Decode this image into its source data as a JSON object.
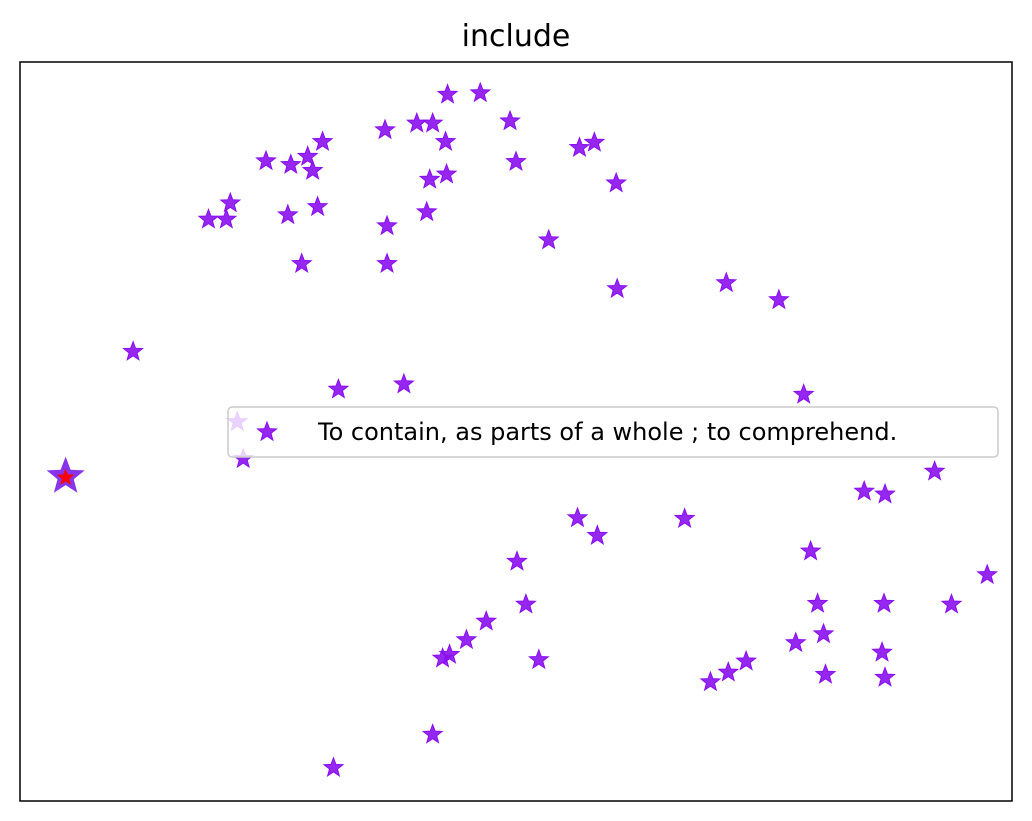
{
  "chart_data": {
    "type": "scatter",
    "title": "include",
    "xlabel": "",
    "ylabel": "",
    "ticks": "hidden",
    "grid": false,
    "legend_placement": "center-right",
    "colors": {
      "points": "#8a10f0",
      "highlight_fill": "#ff0000",
      "highlight_edge": "#7a1ee8"
    },
    "xlim": [
      0,
      100
    ],
    "ylim": [
      0,
      100
    ],
    "series": [
      {
        "name": "To contain, as parts of a whole ; to comprehend.",
        "marker": "star",
        "x": [
          43.1,
          46.4,
          40.0,
          41.6,
          49.4,
          42.9,
          36.8,
          30.5,
          29.0,
          27.3,
          29.5,
          24.8,
          57.9,
          43.0,
          41.3,
          56.4,
          60.1,
          50.0,
          41.0,
          37.0,
          27.0,
          30.0,
          21.2,
          19.0,
          20.8,
          37.0,
          28.4,
          53.3,
          60.2,
          71.2,
          76.5,
          11.4,
          32.1,
          38.7,
          79.0,
          21.9,
          22.5,
          92.2,
          85.1,
          87.2,
          56.2,
          58.2,
          67.0,
          50.1,
          79.7,
          97.5,
          51.0,
          93.9,
          80.4,
          87.1,
          47.0,
          45.0,
          43.3,
          81.0,
          78.2,
          86.9,
          42.6,
          52.3,
          73.2,
          71.4,
          69.6,
          81.2,
          87.2,
          41.6,
          31.6
        ],
        "y": [
          95.6,
          95.8,
          91.7,
          91.7,
          92.0,
          89.2,
          90.8,
          89.2,
          87.2,
          86.1,
          85.3,
          86.6,
          89.1,
          84.8,
          84.1,
          88.4,
          83.6,
          86.5,
          79.7,
          77.8,
          79.3,
          80.4,
          80.9,
          78.7,
          78.7,
          72.7,
          72.7,
          75.9,
          69.3,
          70.1,
          67.8,
          60.8,
          55.7,
          56.4,
          55.0,
          51.3,
          46.3,
          44.6,
          41.9,
          41.5,
          38.3,
          35.9,
          38.2,
          32.4,
          33.8,
          30.6,
          26.6,
          26.6,
          26.7,
          26.7,
          24.3,
          21.8,
          19.8,
          22.6,
          21.4,
          20.1,
          19.3,
          19.1,
          18.9,
          17.4,
          16.1,
          17.1,
          16.7,
          9.0,
          4.5
        ]
      }
    ],
    "highlight_point": {
      "x": 4.6,
      "y": 43.9
    }
  }
}
